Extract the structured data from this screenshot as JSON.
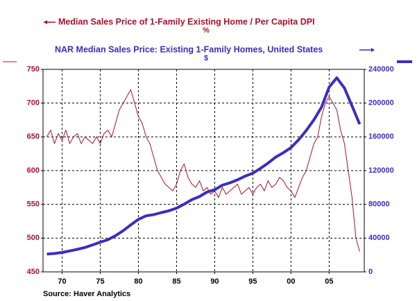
{
  "chart_data": {
    "type": "line",
    "title": "Median Sales Price of 1-Family Existing Home / Per Capita DPI",
    "subtitle": "%",
    "title2": "NAR Median Sales Price: Existing 1-Family Homes, United States",
    "subtitle2": "$",
    "source": "Source: Haver Analytics",
    "xlim": [
      1967.5,
      2009.6
    ],
    "xticks": [
      {
        "value": 1970,
        "label": "70"
      },
      {
        "value": 1975,
        "label": "75"
      },
      {
        "value": 1980,
        "label": "80"
      },
      {
        "value": 1985,
        "label": "85"
      },
      {
        "value": 1990,
        "label": "90"
      },
      {
        "value": 1995,
        "label": "95"
      },
      {
        "value": 2000,
        "label": "00"
      },
      {
        "value": 2005,
        "label": "05"
      }
    ],
    "ylim": [
      450,
      750
    ],
    "yticks": [
      450,
      500,
      550,
      600,
      650,
      700,
      750
    ],
    "y2lim": [
      0,
      240000
    ],
    "y2ticks": [
      0,
      40000,
      80000,
      120000,
      160000,
      200000,
      240000
    ],
    "grid": true,
    "series": [
      {
        "name": "Median Sales Price of 1-Family Existing Home / Per Capita DPI",
        "color": "#a8102a",
        "axis": "y",
        "x": [
          1968,
          1968.5,
          1969,
          1969.5,
          1970,
          1970.5,
          1971,
          1971.5,
          1972,
          1972.5,
          1973,
          1973.5,
          1974,
          1974.5,
          1975,
          1975.5,
          1976,
          1976.5,
          1977,
          1977.5,
          1978,
          1978.5,
          1979,
          1979.5,
          1980,
          1980.5,
          1981,
          1981.5,
          1982,
          1982.5,
          1983,
          1983.5,
          1984,
          1984.5,
          1985,
          1985.5,
          1986,
          1986.5,
          1987,
          1987.5,
          1988,
          1988.5,
          1989,
          1989.5,
          1990,
          1990.5,
          1991,
          1991.5,
          1992,
          1992.5,
          1993,
          1993.5,
          1994,
          1994.5,
          1995,
          1995.5,
          1996,
          1996.5,
          1997,
          1997.5,
          1998,
          1998.5,
          1999,
          1999.5,
          2000,
          2000.5,
          2001,
          2001.5,
          2002,
          2002.5,
          2003,
          2003.5,
          2004,
          2004.5,
          2005,
          2005.5,
          2006,
          2006.5,
          2007,
          2007.5,
          2008,
          2008.5,
          2009
        ],
        "values": [
          650,
          660,
          640,
          655,
          645,
          660,
          640,
          650,
          655,
          640,
          650,
          645,
          640,
          650,
          640,
          655,
          660,
          650,
          670,
          690,
          700,
          710,
          720,
          700,
          680,
          670,
          650,
          640,
          620,
          600,
          590,
          580,
          575,
          570,
          580,
          600,
          610,
          590,
          580,
          575,
          585,
          570,
          575,
          565,
          570,
          560,
          575,
          565,
          570,
          575,
          580,
          565,
          570,
          575,
          565,
          575,
          580,
          570,
          585,
          575,
          580,
          590,
          585,
          575,
          570,
          560,
          575,
          590,
          600,
          620,
          640,
          650,
          680,
          700,
          710,
          700,
          690,
          660,
          640,
          600,
          560,
          500,
          480
        ]
      },
      {
        "name": "NAR Median Sales Price: Existing 1-Family Homes, United States",
        "color": "#3b2dbf",
        "axis": "y2",
        "x": [
          1968,
          1969,
          1970,
          1971,
          1972,
          1973,
          1974,
          1975,
          1976,
          1977,
          1978,
          1979,
          1980,
          1981,
          1982,
          1983,
          1984,
          1985,
          1986,
          1987,
          1988,
          1989,
          1990,
          1991,
          1992,
          1993,
          1994,
          1995,
          1996,
          1997,
          1998,
          1999,
          2000,
          2001,
          2002,
          2003,
          2004,
          2005,
          2006,
          2007,
          2008,
          2009
        ],
        "values": [
          21000,
          21800,
          23000,
          24800,
          26700,
          28900,
          32000,
          35300,
          38100,
          42900,
          48700,
          55700,
          62200,
          66400,
          67800,
          70300,
          72400,
          75500,
          80300,
          85600,
          89300,
          94600,
          97300,
          102700,
          105500,
          109100,
          113500,
          117000,
          122600,
          129000,
          136000,
          141200,
          147300,
          156600,
          167600,
          180200,
          195200,
          219000,
          230000,
          217900,
          196600,
          175000
        ]
      }
    ]
  }
}
